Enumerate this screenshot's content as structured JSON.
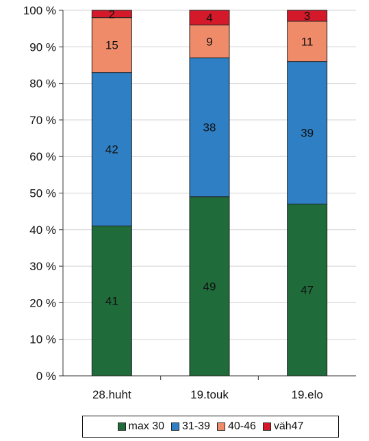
{
  "chart_data": {
    "type": "bar",
    "stacked": true,
    "percent": true,
    "categories": [
      "28.huht",
      "19.touk",
      "19.elo"
    ],
    "series": [
      {
        "name": "max 30",
        "color": "#1f6b3a",
        "values": [
          41,
          49,
          47
        ]
      },
      {
        "name": "31-39",
        "color": "#2f7fc4",
        "values": [
          42,
          38,
          39
        ]
      },
      {
        "name": "40-46",
        "color": "#f08b6a",
        "values": [
          15,
          9,
          11
        ]
      },
      {
        "name": "väh47",
        "color": "#d41a2a",
        "values": [
          2,
          4,
          3
        ]
      }
    ],
    "y_ticks": [
      "0 %",
      "10 %",
      "20 %",
      "30 %",
      "40 %",
      "50 %",
      "60 %",
      "70 %",
      "80 %",
      "90 %",
      "100 %"
    ],
    "ylim": [
      0,
      100
    ],
    "grid": true,
    "legend_position": "bottom"
  }
}
